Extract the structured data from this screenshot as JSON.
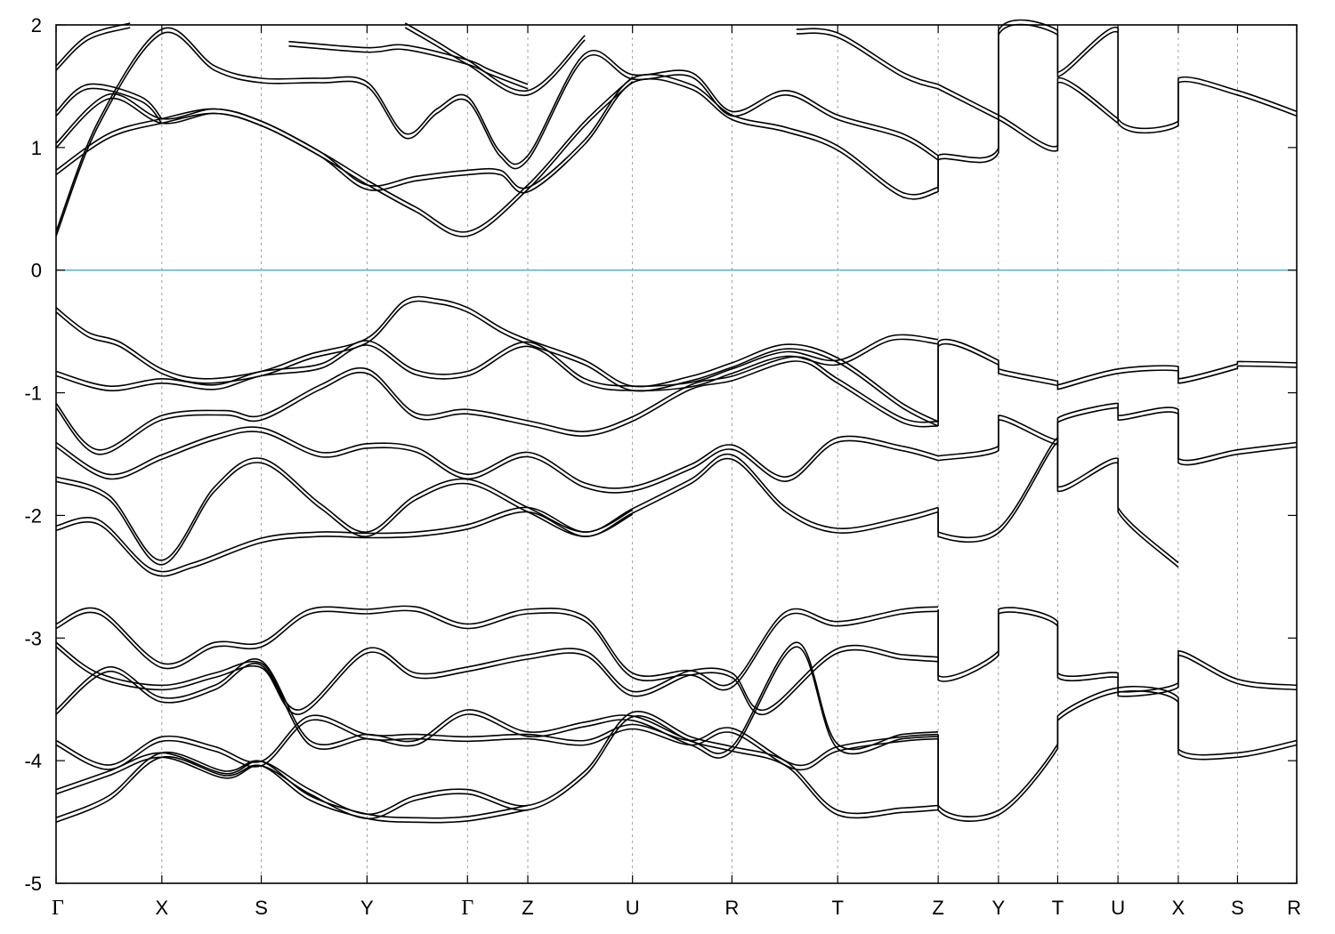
{
  "chart_data": {
    "type": "line",
    "title": "",
    "xlabel": "",
    "ylabel": "",
    "ylim": [
      -5,
      2
    ],
    "yticks": [
      -5,
      -4,
      -3,
      -2,
      -1,
      0,
      1,
      2
    ],
    "grid": "vertical dashed lines at high-symmetry points",
    "fermi_level": {
      "y": 0,
      "color": "#5fb4c9"
    },
    "band_color": "#000000",
    "kpoints": [
      {
        "label": "Γ",
        "x": 0.0
      },
      {
        "label": "X",
        "x": 1.0
      },
      {
        "label": "S",
        "x": 1.94
      },
      {
        "label": "Y",
        "x": 2.94
      },
      {
        "label": "Γ",
        "x": 3.89
      },
      {
        "label": "Z",
        "x": 4.46
      },
      {
        "label": "U",
        "x": 5.45
      },
      {
        "label": "R",
        "x": 6.39
      },
      {
        "label": "T",
        "x": 7.39
      },
      {
        "label": "Z",
        "x": 8.34
      },
      {
        "label": "Y",
        "x": 8.91
      },
      {
        "label": "T",
        "x": 9.47
      },
      {
        "label": "U",
        "x": 10.04
      },
      {
        "label": "X",
        "x": 10.61
      },
      {
        "label": "S",
        "x": 11.17
      },
      {
        "label": "R",
        "x": 11.73
      }
    ],
    "xlim": [
      0,
      11.73
    ],
    "series": [
      {
        "x": [
          0,
          0.3,
          0.6,
          1.0,
          1.4,
          1.94,
          2.4,
          2.94,
          3.3,
          3.6,
          3.89,
          4.2,
          4.46,
          5.0,
          5.45,
          6.0,
          6.39,
          6.9,
          7.39,
          8.0,
          8.34
        ],
        "values": [
          -0.32,
          -0.52,
          -0.6,
          -0.82,
          -0.9,
          -0.84,
          -0.7,
          -0.57,
          -0.26,
          -0.25,
          -0.32,
          -0.48,
          -0.58,
          -0.75,
          -0.96,
          -0.88,
          -0.77,
          -0.62,
          -0.73,
          -1.1,
          -1.25
        ]
      },
      {
        "x": [
          8.34,
          8.34,
          8.91,
          8.91,
          9.47,
          9.47,
          10.04,
          10.61,
          10.61,
          11.17,
          11.17,
          11.73
        ],
        "values": [
          -1.25,
          -0.6,
          -0.75,
          -0.82,
          -0.92,
          -0.95,
          -0.82,
          -0.8,
          -0.9,
          -0.78,
          -0.76,
          -0.77
        ]
      },
      {
        "x": [
          0,
          0.5,
          1.0,
          1.5,
          1.94,
          2.5,
          2.94,
          3.4,
          3.89,
          4.46,
          5.0,
          5.45,
          6.0,
          6.39,
          6.9,
          7.39,
          7.9,
          8.34
        ],
        "values": [
          -0.84,
          -0.96,
          -0.9,
          -0.95,
          -0.84,
          -0.78,
          -0.59,
          -0.83,
          -0.84,
          -0.6,
          -0.9,
          -0.96,
          -0.93,
          -0.82,
          -0.68,
          -0.75,
          -0.55,
          -0.58
        ]
      },
      {
        "x": [
          0,
          0.4,
          1.0,
          1.6,
          1.94,
          2.5,
          2.94,
          3.4,
          3.89,
          4.5,
          5.0,
          5.45,
          6.0,
          6.39,
          7.0,
          7.39,
          8.0,
          8.34
        ],
        "values": [
          -1.1,
          -1.48,
          -1.2,
          -1.16,
          -1.2,
          -0.95,
          -0.82,
          -1.18,
          -1.15,
          -1.25,
          -1.33,
          -1.21,
          -0.95,
          -0.88,
          -0.72,
          -0.9,
          -1.22,
          -1.25
        ]
      },
      {
        "x": [
          0,
          0.5,
          1.0,
          1.5,
          1.94,
          2.5,
          2.94,
          3.4,
          3.89,
          4.46,
          5.0,
          5.45,
          6.0,
          6.39,
          6.9,
          7.39,
          8.0,
          8.34
        ],
        "values": [
          -1.42,
          -1.68,
          -1.52,
          -1.36,
          -1.3,
          -1.5,
          -1.43,
          -1.46,
          -1.68,
          -1.5,
          -1.75,
          -1.78,
          -1.6,
          -1.44,
          -1.7,
          -1.38,
          -1.45,
          -1.53
        ]
      },
      {
        "x": [
          0,
          0.5,
          1.0,
          1.5,
          1.94,
          2.5,
          2.94,
          3.4,
          3.89,
          4.46,
          5.0,
          5.45,
          6.0,
          6.39,
          6.9,
          7.39,
          8.0,
          8.34
        ],
        "values": [
          -1.7,
          -1.85,
          -2.38,
          -1.78,
          -1.55,
          -1.92,
          -2.15,
          -1.85,
          -1.72,
          -1.95,
          -2.15,
          -1.96,
          -1.72,
          -1.52,
          -1.95,
          -2.12,
          -2.03,
          -1.95
        ]
      },
      {
        "x": [
          0,
          0.4,
          0.9,
          1.3,
          1.94,
          2.5,
          2.94,
          3.4,
          3.89,
          4.46,
          5.0,
          5.45
        ],
        "values": [
          -2.1,
          -2.05,
          -2.45,
          -2.4,
          -2.2,
          -2.15,
          -2.16,
          -2.15,
          -2.09,
          -1.95,
          -2.15,
          -1.97
        ]
      },
      {
        "x": [
          8.34,
          8.34,
          8.91,
          9.47,
          9.47,
          10.04,
          10.04,
          10.61
        ],
        "values": [
          -1.95,
          -2.15,
          -2.12,
          -1.38,
          -1.78,
          -1.55,
          -1.95,
          -2.4
        ]
      },
      {
        "x": [
          8.34,
          8.91,
          8.91,
          9.47,
          9.47,
          10.04,
          10.04,
          10.61,
          10.61,
          11.17,
          11.73
        ],
        "values": [
          -1.53,
          -1.45,
          -1.2,
          -1.4,
          -1.22,
          -1.1,
          -1.2,
          -1.15,
          -1.55,
          -1.48,
          -1.42
        ]
      },
      {
        "x": [
          0,
          0.4,
          1.0,
          1.5,
          1.94,
          2.4,
          2.94,
          3.4,
          3.89,
          4.46,
          5.0,
          5.45,
          6.0,
          6.39,
          6.9,
          7.39,
          8.0,
          8.34
        ],
        "values": [
          -2.9,
          -2.78,
          -3.22,
          -3.05,
          -3.05,
          -2.78,
          -2.78,
          -2.76,
          -2.9,
          -2.78,
          -2.84,
          -3.3,
          -3.28,
          -3.38,
          -2.8,
          -2.88,
          -2.78,
          -2.76
        ]
      },
      {
        "x": [
          0,
          0.4,
          1.0,
          1.5,
          1.94,
          2.3,
          2.94,
          3.4,
          3.89,
          4.46,
          5.0,
          5.45,
          6.0,
          6.39,
          6.7,
          7.39,
          8.0,
          8.34
        ],
        "values": [
          -3.05,
          -3.3,
          -3.4,
          -3.3,
          -3.22,
          -3.6,
          -3.1,
          -3.3,
          -3.25,
          -3.15,
          -3.12,
          -3.45,
          -3.28,
          -3.3,
          -3.6,
          -3.1,
          -3.15,
          -3.17
        ]
      },
      {
        "x": [
          0,
          0.5,
          1.0,
          1.5,
          1.94,
          2.4,
          2.94,
          3.4,
          3.89,
          4.46,
          5.0,
          5.45,
          6.0,
          6.39,
          7.0,
          7.39,
          8.0,
          8.34
        ],
        "values": [
          -3.6,
          -3.25,
          -3.5,
          -3.4,
          -3.2,
          -3.85,
          -3.8,
          -3.85,
          -3.6,
          -3.78,
          -3.7,
          -3.65,
          -3.85,
          -3.9,
          -3.05,
          -3.88,
          -3.8,
          -3.78
        ]
      },
      {
        "x": [
          0,
          0.5,
          1.0,
          1.5,
          1.94,
          2.4,
          2.94,
          3.4,
          3.89,
          4.46,
          5.0,
          5.45,
          6.0,
          6.39,
          7.0,
          7.39,
          8.0,
          8.34
        ],
        "values": [
          -3.85,
          -4.05,
          -3.82,
          -3.9,
          -4.02,
          -3.65,
          -3.8,
          -3.8,
          -3.82,
          -3.8,
          -3.85,
          -3.72,
          -3.85,
          -3.75,
          -4.05,
          -3.9,
          -3.82,
          -3.8
        ]
      },
      {
        "x": [
          0,
          0.5,
          1.0,
          1.6,
          1.94,
          2.4,
          2.94,
          3.4,
          3.89,
          4.46,
          5.0,
          5.45,
          6.0,
          6.39,
          6.9,
          7.39,
          8.0,
          8.34
        ],
        "values": [
          -4.25,
          -4.1,
          -3.95,
          -4.12,
          -4.02,
          -4.25,
          -4.45,
          -4.3,
          -4.25,
          -4.38,
          -4.1,
          -3.62,
          -3.82,
          -3.9,
          -4.02,
          -4.42,
          -4.4,
          -4.38
        ]
      },
      {
        "x": [
          0,
          0.5,
          1.0,
          1.6,
          1.94,
          2.4,
          2.94,
          3.4,
          3.89,
          4.46
        ],
        "values": [
          -4.48,
          -4.3,
          -3.95,
          -4.1,
          -4.02,
          -4.3,
          -4.45,
          -4.48,
          -4.47,
          -4.38
        ]
      },
      {
        "x": [
          8.34,
          8.34,
          8.91,
          8.91,
          9.47,
          9.47,
          10.04,
          10.04,
          10.61,
          10.61,
          11.17,
          11.73
        ],
        "values": [
          -2.78,
          -3.32,
          -3.12,
          -2.78,
          -2.88,
          -3.3,
          -3.3,
          -3.45,
          -3.38,
          -3.12,
          -3.35,
          -3.4
        ]
      },
      {
        "x": [
          8.34,
          8.34,
          8.91,
          9.47,
          9.47,
          10.04,
          10.61,
          10.61,
          11.17,
          11.73
        ],
        "values": [
          -3.8,
          -4.38,
          -4.42,
          -3.88,
          -3.65,
          -3.42,
          -3.5,
          -3.92,
          -3.95,
          -3.85
        ]
      },
      {
        "x": [
          0,
          0.4,
          1.0,
          1.5,
          1.94,
          2.5,
          2.94,
          3.3,
          3.6,
          3.89,
          4.2,
          4.46,
          5.0,
          5.45,
          6.0,
          6.39,
          6.9,
          7.39,
          8.0,
          8.34
        ],
        "values": [
          0.3,
          1.2,
          1.95,
          1.65,
          1.55,
          1.55,
          1.52,
          1.1,
          1.3,
          1.4,
          0.95,
          0.92,
          1.75,
          1.58,
          1.6,
          1.28,
          1.45,
          1.25,
          1.1,
          0.92
        ]
      },
      {
        "x": [
          0,
          0.5,
          1.0,
          1.5,
          1.94,
          2.5,
          2.94,
          3.4,
          3.89,
          4.2,
          4.46,
          5.0,
          5.45,
          6.0,
          6.39,
          6.9,
          7.39,
          8.0,
          8.34
        ],
        "values": [
          0.8,
          1.1,
          1.22,
          1.3,
          1.2,
          0.95,
          0.68,
          0.75,
          0.8,
          0.8,
          0.66,
          1.05,
          1.55,
          1.5,
          1.25,
          1.15,
          1.0,
          0.62,
          0.66
        ]
      },
      {
        "x": [
          0,
          0.5,
          1.0,
          1.5,
          1.94,
          2.5,
          2.94,
          3.4,
          3.89,
          4.46,
          5.0,
          5.45
        ],
        "values": [
          1.02,
          1.42,
          1.22,
          1.3,
          1.2,
          0.95,
          0.72,
          0.5,
          0.3,
          0.68,
          1.2,
          1.56
        ]
      },
      {
        "x": [
          0,
          0.3,
          0.8,
          1.0
        ],
        "values": [
          1.28,
          1.5,
          1.4,
          1.22
        ]
      },
      {
        "x": [
          0,
          0.3,
          0.7
        ],
        "values": [
          1.65,
          1.9,
          2.0
        ]
      },
      {
        "x": [
          2.2,
          2.94,
          3.3,
          3.89,
          4.1,
          4.46
        ],
        "values": [
          1.85,
          1.8,
          1.82,
          1.7,
          1.62,
          1.5
        ]
      },
      {
        "x": [
          3.3,
          3.6,
          3.89,
          4.46,
          5.0
        ],
        "values": [
          2.0,
          1.85,
          1.7,
          1.45,
          1.9
        ]
      },
      {
        "x": [
          7.0,
          7.39,
          8.0,
          8.34
        ],
        "values": [
          1.95,
          1.92,
          1.6,
          1.5
        ]
      },
      {
        "x": [
          8.34,
          8.34,
          8.91,
          8.91,
          9.47,
          9.47,
          10.04,
          10.04,
          10.61,
          10.61,
          11.17,
          11.73
        ],
        "values": [
          0.66,
          0.92,
          0.98,
          1.94,
          1.94,
          1.6,
          1.96,
          1.22,
          1.2,
          1.55,
          1.45,
          1.28
        ]
      },
      {
        "x": [
          8.34,
          8.91,
          9.47,
          9.47,
          10.04
        ],
        "values": [
          1.5,
          1.25,
          1.0,
          1.55,
          1.22
        ]
      }
    ]
  }
}
